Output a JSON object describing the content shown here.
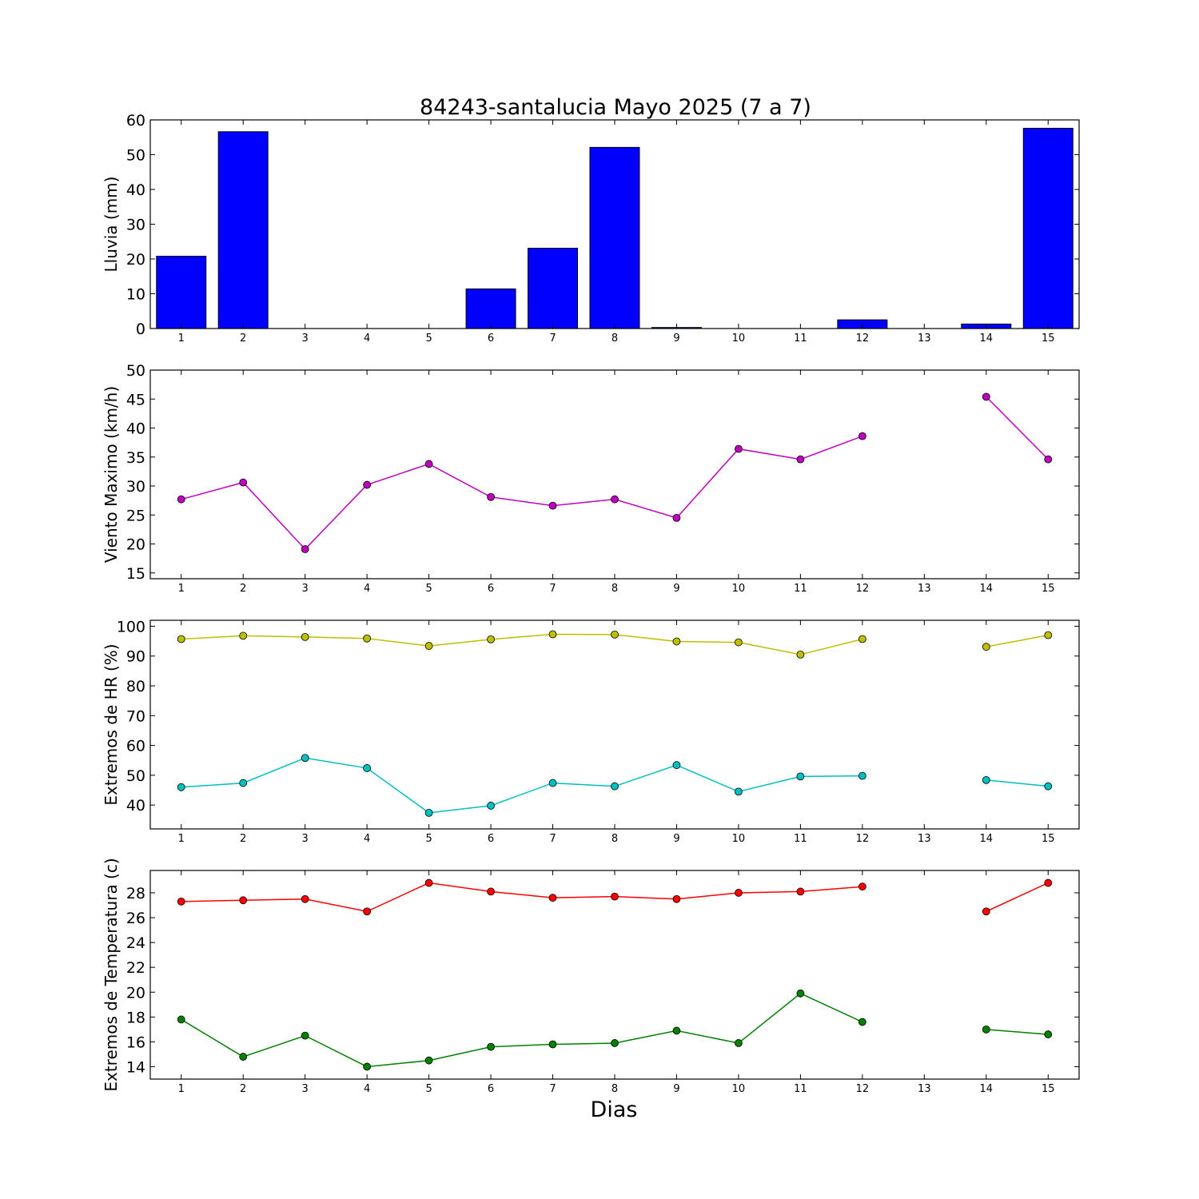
{
  "figure": {
    "title": "84243-santalucia Mayo 2025  (7 a 7)",
    "xlabel": "Dias"
  },
  "chart_data": [
    {
      "type": "bar",
      "ylabel": "Lluvia (mm)",
      "ylim": [
        0,
        60
      ],
      "yticks": [
        0,
        10,
        20,
        30,
        40,
        50,
        60
      ],
      "xticks": [
        1,
        2,
        3,
        4,
        5,
        6,
        7,
        8,
        9,
        10,
        11,
        12,
        13,
        14,
        15
      ],
      "xlim": [
        0.5,
        15.5
      ],
      "x": [
        1,
        2,
        3,
        4,
        5,
        6,
        7,
        8,
        9,
        10,
        11,
        12,
        13,
        14,
        15
      ],
      "series": [
        {
          "values": [
            20.8,
            56.6,
            0,
            0,
            0,
            11.4,
            23.1,
            52.1,
            0.3,
            0,
            0,
            2.5,
            0,
            1.3,
            57.6
          ],
          "color": "#0000ff"
        }
      ]
    },
    {
      "type": "line",
      "ylabel": "Viento Maximo (km/h)",
      "ylim": [
        14,
        50
      ],
      "yticks": [
        15,
        20,
        25,
        30,
        35,
        40,
        45,
        50
      ],
      "xticks": [
        1,
        2,
        3,
        4,
        5,
        6,
        7,
        8,
        9,
        10,
        11,
        12,
        13,
        14,
        15
      ],
      "xlim": [
        0.5,
        15.5
      ],
      "x": [
        1,
        2,
        3,
        4,
        5,
        6,
        7,
        8,
        9,
        10,
        11,
        12,
        13,
        14,
        15
      ],
      "series": [
        {
          "values": [
            27.7,
            30.6,
            19.1,
            30.2,
            33.8,
            28.1,
            26.6,
            27.7,
            24.5,
            36.4,
            34.6,
            38.6,
            null,
            45.4,
            34.6
          ],
          "color": "#bf00bf"
        }
      ]
    },
    {
      "type": "line",
      "ylabel": "Extremos de HR (%)",
      "ylim": [
        32,
        102
      ],
      "yticks": [
        40,
        50,
        60,
        70,
        80,
        90,
        100
      ],
      "xticks": [
        1,
        2,
        3,
        4,
        5,
        6,
        7,
        8,
        9,
        10,
        11,
        12,
        13,
        14,
        15
      ],
      "xlim": [
        0.5,
        15.5
      ],
      "x": [
        1,
        2,
        3,
        4,
        5,
        6,
        7,
        8,
        9,
        10,
        11,
        12,
        13,
        14,
        15
      ],
      "series": [
        {
          "values": [
            95.7,
            96.8,
            96.4,
            95.9,
            93.4,
            95.6,
            97.3,
            97.2,
            94.9,
            94.6,
            90.5,
            95.7,
            null,
            93.1,
            97.0
          ],
          "color": "#bfbf00"
        },
        {
          "values": [
            46.0,
            47.4,
            55.8,
            52.4,
            37.4,
            39.8,
            47.4,
            46.3,
            53.4,
            44.5,
            49.6,
            49.8,
            null,
            48.4,
            46.3
          ],
          "color": "#00bfbf"
        }
      ]
    },
    {
      "type": "line",
      "ylabel": "Extremos de Temperatura (c)",
      "ylim": [
        13,
        29.8
      ],
      "yticks": [
        14,
        16,
        18,
        20,
        22,
        24,
        26,
        28
      ],
      "xticks": [
        1,
        2,
        3,
        4,
        5,
        6,
        7,
        8,
        9,
        10,
        11,
        12,
        13,
        14,
        15
      ],
      "xlim": [
        0.5,
        15.5
      ],
      "x": [
        1,
        2,
        3,
        4,
        5,
        6,
        7,
        8,
        9,
        10,
        11,
        12,
        13,
        14,
        15
      ],
      "series": [
        {
          "values": [
            27.3,
            27.4,
            27.5,
            26.5,
            28.8,
            28.1,
            27.6,
            27.7,
            27.5,
            28.0,
            28.1,
            28.5,
            null,
            26.5,
            28.8
          ],
          "color": "#ff0000"
        },
        {
          "values": [
            17.8,
            14.8,
            16.5,
            14.0,
            14.5,
            15.6,
            15.8,
            15.9,
            16.9,
            15.9,
            19.9,
            17.6,
            null,
            17.0,
            16.6
          ],
          "color": "#008000"
        }
      ]
    }
  ]
}
